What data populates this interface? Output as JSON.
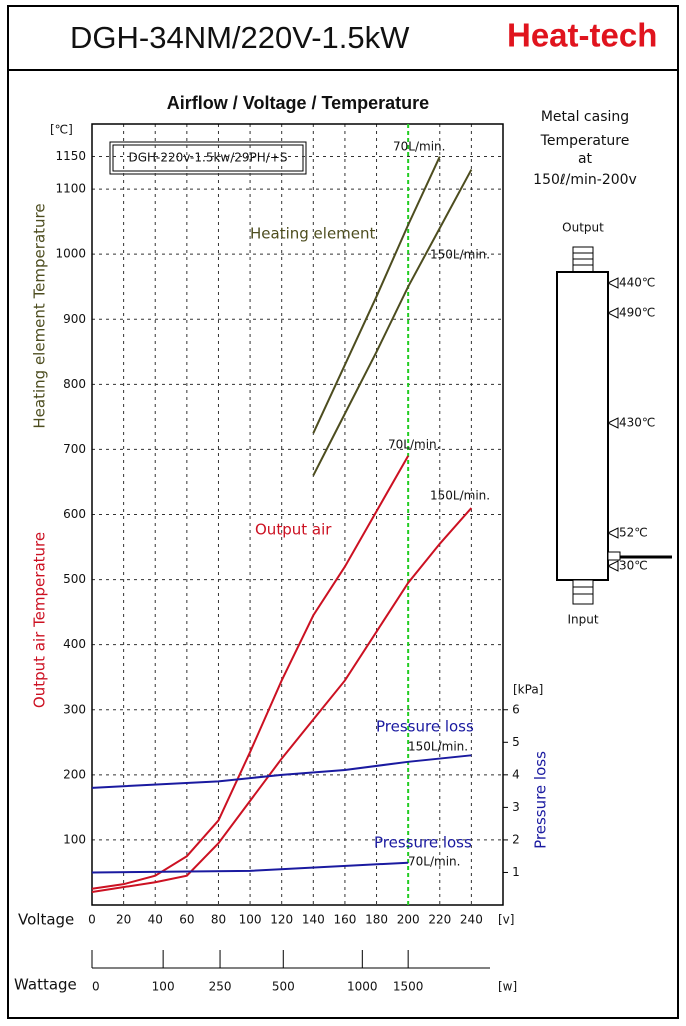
{
  "header": {
    "title": "DGH-34NM/220V-1.5kW",
    "brand": "Heat-tech"
  },
  "chart_data": {
    "type": "line",
    "title": "Airflow / Voltage / Temperature",
    "box_label": "DGH-220v-1.5kw/29PH/+S",
    "ylabel": "Heating element Temperature",
    "ylabel2": "Output air Temperature",
    "y2label": "Pressure loss",
    "yunit": "[℃]",
    "y2unit": "[kPa]",
    "xlabel": "Voltage",
    "xunit": "[v]",
    "xlim": [
      0,
      260
    ],
    "xticks": [
      0,
      20,
      40,
      60,
      80,
      100,
      120,
      140,
      160,
      180,
      200,
      220,
      240
    ],
    "ylim": [
      0,
      1200
    ],
    "yticks": [
      100,
      200,
      300,
      400,
      500,
      600,
      700,
      800,
      900,
      1000,
      1100,
      1150
    ],
    "y2lim": [
      0,
      24
    ],
    "y2ticks": [
      1,
      2,
      3,
      4,
      5,
      6
    ],
    "grid": true,
    "wattage_axis": {
      "label": "Wattage",
      "unit": "[w]",
      "ticks": [
        0,
        100,
        250,
        500,
        1000,
        1500
      ],
      "at_voltage": [
        0,
        45,
        81,
        121,
        171,
        200
      ]
    },
    "marker_line": {
      "x": 200,
      "color": "#22cc22"
    },
    "annotations": [
      "Heating element",
      "Output air",
      "Pressure loss",
      "Pressure loss"
    ],
    "series": [
      {
        "name": "70L/min.",
        "color": "#4d4d1f",
        "x": [
          140,
          160,
          180,
          200,
          220
        ],
        "values": [
          725,
          830,
          935,
          1045,
          1150
        ]
      },
      {
        "name": "150L/min.",
        "color": "#4d4d1f",
        "x": [
          140,
          160,
          180,
          200,
          220,
          240
        ],
        "values": [
          660,
          755,
          850,
          950,
          1040,
          1130
        ]
      },
      {
        "name": "70L/min.",
        "color": "#cc1122",
        "x": [
          0,
          20,
          40,
          60,
          80,
          100,
          120,
          140,
          160,
          180,
          200
        ],
        "values": [
          25,
          32,
          45,
          75,
          130,
          235,
          345,
          445,
          520,
          605,
          690
        ]
      },
      {
        "name": "150L/min.",
        "color": "#cc1122",
        "x": [
          0,
          40,
          60,
          80,
          100,
          120,
          140,
          160,
          180,
          200,
          220,
          240
        ],
        "values": [
          20,
          35,
          45,
          95,
          160,
          225,
          285,
          345,
          420,
          495,
          555,
          610
        ]
      },
      {
        "name": "150L/min.",
        "color": "#1a1aa0",
        "axis": "y2",
        "x": [
          0,
          80,
          120,
          160,
          200,
          240
        ],
        "values": [
          3.6,
          3.8,
          4.0,
          4.15,
          4.4,
          4.6
        ]
      },
      {
        "name": "70L/min.",
        "color": "#1a1aa0",
        "axis": "y2",
        "x": [
          0,
          100,
          200
        ],
        "values": [
          1.0,
          1.05,
          1.3
        ]
      }
    ]
  },
  "casing": {
    "title": [
      "Metal casing",
      "Temperature",
      "at",
      "150ℓ/min-200v"
    ],
    "output": "Output",
    "input": "Input",
    "temps": [
      "440℃",
      "490℃",
      "430℃",
      "52℃",
      "30℃"
    ]
  }
}
